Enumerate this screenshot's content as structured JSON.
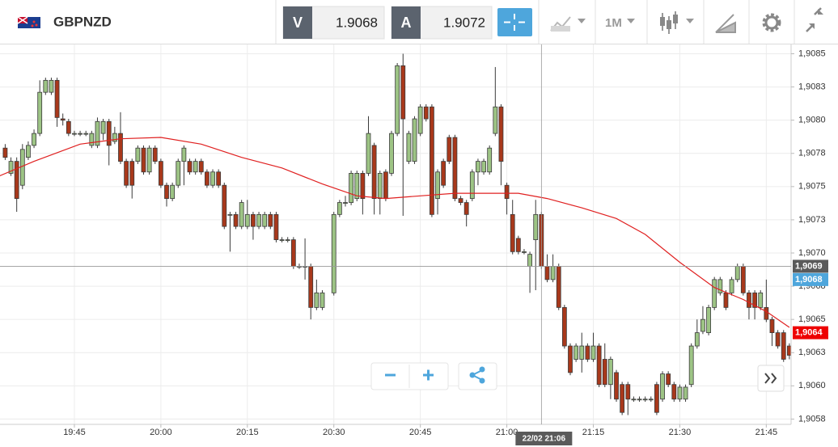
{
  "toolbar": {
    "symbol": "GBPNZD",
    "bid": {
      "letter": "V",
      "price": "1.9068"
    },
    "ask": {
      "letter": "A",
      "price": "1.9072"
    },
    "period": "1M"
  },
  "chart_data": {
    "type": "candlestick",
    "x": [
      1173,
      1174,
      1175,
      1176,
      1177,
      1178,
      1179,
      1180,
      1181,
      1182,
      1183,
      1184,
      1185,
      1186,
      1187,
      1188,
      1189,
      1190,
      1191,
      1192,
      1193,
      1194,
      1195,
      1196,
      1197,
      1198,
      1199,
      1200,
      1201,
      1202,
      1203,
      1204,
      1205,
      1206,
      1207,
      1208,
      1209,
      1210,
      1211,
      1212,
      1213,
      1214,
      1215,
      1216,
      1217,
      1218,
      1219,
      1220,
      1221,
      1222,
      1223,
      1224,
      1225,
      1226,
      1227,
      1228,
      1230,
      1231,
      1232,
      1233,
      1234,
      1235,
      1236,
      1237,
      1238,
      1239,
      1240,
      1241,
      1242,
      1243,
      1244,
      1245,
      1246,
      1247,
      1248,
      1249,
      1250,
      1251,
      1252,
      1253,
      1254,
      1255,
      1256,
      1257,
      1258,
      1259,
      1260,
      1261,
      1262,
      1263,
      1264,
      1265,
      1266,
      1267,
      1268,
      1269,
      1270,
      1271,
      1272,
      1273,
      1274,
      1275,
      1276,
      1277,
      1278,
      1279,
      1280,
      1281,
      1282,
      1283,
      1284,
      1285,
      1286,
      1287,
      1288,
      1289,
      1290,
      1291,
      1292,
      1293,
      1294,
      1295,
      1296,
      1297,
      1298,
      1299,
      1300,
      1301,
      1302,
      1303,
      1304,
      1305,
      1306,
      1307,
      1308,
      1309
    ],
    "open": [
      1.90779,
      1.9076,
      1.90769,
      1.90751,
      1.90772,
      1.90781,
      1.9079,
      1.90821,
      1.90821,
      1.9083,
      1.90801,
      1.90799,
      1.9079,
      1.9079,
      1.9079,
      1.90781,
      1.90781,
      1.9079,
      1.90799,
      1.90784,
      1.9079,
      1.90769,
      1.90769,
      1.90769,
      1.90779,
      1.90761,
      1.90779,
      1.90769,
      1.90751,
      1.90741,
      1.90751,
      1.90769,
      1.90769,
      1.90761,
      1.90769,
      1.90761,
      1.90751,
      1.90761,
      1.90751,
      1.90729,
      1.90729,
      1.9072,
      1.9072,
      1.90729,
      1.9072,
      1.9072,
      1.90729,
      1.90729,
      1.9071,
      1.9071,
      1.9071,
      1.9069,
      1.9069,
      1.9069,
      1.90659,
      1.90659,
      1.9067,
      1.90729,
      1.90738,
      1.90738,
      1.90741,
      1.9076,
      1.9076,
      1.90781,
      1.90741,
      1.90761,
      1.9076,
      1.9079,
      1.90841,
      1.90769,
      1.90769,
      1.9079,
      1.9081,
      1.9081,
      1.90741,
      1.90769,
      1.90787,
      1.90787,
      1.90741,
      1.90738,
      1.90741,
      1.90761,
      1.90761,
      1.90761,
      1.9079,
      1.9081,
      1.90751,
      1.90729,
      1.90711,
      1.90701,
      1.9069,
      1.9071,
      1.90729,
      1.9069,
      1.9068,
      1.9069,
      1.90659,
      1.9063,
      1.9062,
      1.9062,
      1.9063,
      1.9062,
      1.9063,
      1.9062,
      1.90601,
      1.9061,
      1.90601,
      1.90601,
      1.9059,
      1.9059,
      1.9059,
      1.9059,
      1.90601,
      1.9059,
      1.90609,
      1.90601,
      1.9059,
      1.9059,
      1.90601,
      1.9063,
      1.90641,
      1.9064,
      1.90659,
      1.9067,
      1.9067,
      1.9067,
      1.9068,
      1.9069,
      1.9067,
      1.9067,
      1.90659,
      1.90659,
      1.9065,
      1.9064,
      1.9064,
      1.9063
    ],
    "high": [
      1.90782,
      1.90772,
      1.90772,
      1.90782,
      1.90784,
      1.90793,
      1.9083,
      1.90832,
      1.90832,
      1.90832,
      1.90805,
      1.90801,
      1.90792,
      1.90792,
      1.90792,
      1.90792,
      1.90802,
      1.90801,
      1.90801,
      1.90795,
      1.90806,
      1.90771,
      1.90771,
      1.90781,
      1.90781,
      1.90781,
      1.90781,
      1.90771,
      1.90753,
      1.90753,
      1.90771,
      1.90781,
      1.90771,
      1.90771,
      1.90771,
      1.90763,
      1.90763,
      1.90763,
      1.90753,
      1.90731,
      1.90731,
      1.9074,
      1.9074,
      1.90731,
      1.90731,
      1.90731,
      1.90731,
      1.90731,
      1.90712,
      1.90712,
      1.90712,
      1.90692,
      1.90711,
      1.90692,
      1.9068,
      1.90672,
      1.90731,
      1.9074,
      1.90743,
      1.90762,
      1.90762,
      1.90762,
      1.90803,
      1.90783,
      1.90762,
      1.90763,
      1.90792,
      1.90843,
      1.9085,
      1.90792,
      1.90803,
      1.90812,
      1.90812,
      1.90812,
      1.90763,
      1.90771,
      1.90789,
      1.90789,
      1.90743,
      1.9074,
      1.90763,
      1.90771,
      1.90771,
      1.90781,
      1.9084,
      1.90812,
      1.90753,
      1.9074,
      1.90713,
      1.90703,
      1.90701,
      1.9074,
      1.90731,
      1.90699,
      1.90699,
      1.90692,
      1.90661,
      1.90632,
      1.90632,
      1.9064,
      1.90632,
      1.9064,
      1.90632,
      1.90632,
      1.90622,
      1.90612,
      1.90603,
      1.90603,
      1.90592,
      1.90592,
      1.90592,
      1.90592,
      1.90603,
      1.90611,
      1.90611,
      1.90603,
      1.90601,
      1.90601,
      1.90632,
      1.9065,
      1.9066,
      1.90661,
      1.90682,
      1.90682,
      1.90672,
      1.90682,
      1.90692,
      1.90692,
      1.90672,
      1.90672,
      1.90672,
      1.9068,
      1.90652,
      1.90642,
      1.90642,
      1.90632
    ],
    "low": [
      1.9077,
      1.90758,
      1.90731,
      1.90748,
      1.9077,
      1.90779,
      1.90788,
      1.90819,
      1.90819,
      1.90795,
      1.90796,
      1.90788,
      1.90788,
      1.90788,
      1.90788,
      1.90779,
      1.90779,
      1.90785,
      1.90766,
      1.90782,
      1.90767,
      1.90749,
      1.90741,
      1.90767,
      1.90759,
      1.90759,
      1.90767,
      1.90749,
      1.90735,
      1.90739,
      1.90749,
      1.90751,
      1.90759,
      1.90759,
      1.90759,
      1.90749,
      1.90749,
      1.90749,
      1.90718,
      1.90701,
      1.90718,
      1.90718,
      1.90718,
      1.9071,
      1.90718,
      1.90718,
      1.90718,
      1.90708,
      1.90708,
      1.90708,
      1.90688,
      1.90688,
      1.9068,
      1.9065,
      1.90657,
      1.90657,
      1.90668,
      1.90727,
      1.90735,
      1.90736,
      1.90739,
      1.90729,
      1.90758,
      1.90729,
      1.90729,
      1.90739,
      1.90758,
      1.90788,
      1.90728,
      1.90767,
      1.90767,
      1.90788,
      1.90799,
      1.90727,
      1.90729,
      1.90749,
      1.90767,
      1.90739,
      1.90736,
      1.9072,
      1.90739,
      1.90751,
      1.90759,
      1.90759,
      1.90788,
      1.90751,
      1.90729,
      1.90699,
      1.90699,
      1.90699,
      1.9067,
      1.90672,
      1.90688,
      1.90678,
      1.90678,
      1.90657,
      1.90628,
      1.90608,
      1.90618,
      1.9061,
      1.90618,
      1.90618,
      1.90599,
      1.90599,
      1.9059,
      1.90588,
      1.90578,
      1.90578,
      1.90588,
      1.90588,
      1.90588,
      1.90588,
      1.90578,
      1.90588,
      1.90599,
      1.90588,
      1.90588,
      1.90588,
      1.90599,
      1.90628,
      1.90639,
      1.90638,
      1.90657,
      1.90668,
      1.90657,
      1.90668,
      1.90678,
      1.90668,
      1.9065,
      1.9065,
      1.90657,
      1.90648,
      1.9063,
      1.90628,
      1.90618,
      1.9062
    ],
    "close": [
      1.90772,
      1.90769,
      1.90741,
      1.90778,
      1.90781,
      1.9079,
      1.90821,
      1.9083,
      1.9083,
      1.90802,
      1.908,
      1.9079,
      1.9079,
      1.9079,
      1.9079,
      1.9079,
      1.90799,
      1.90799,
      1.90781,
      1.9079,
      1.90769,
      1.90751,
      1.90751,
      1.90779,
      1.90761,
      1.90779,
      1.90769,
      1.90751,
      1.90741,
      1.90751,
      1.90769,
      1.90779,
      1.90761,
      1.90769,
      1.90761,
      1.90751,
      1.90761,
      1.90751,
      1.9072,
      1.90729,
      1.9072,
      1.90738,
      1.90729,
      1.9072,
      1.90729,
      1.90729,
      1.9072,
      1.9071,
      1.9071,
      1.9071,
      1.9069,
      1.9069,
      1.9069,
      1.90659,
      1.9067,
      1.9067,
      1.90729,
      1.90738,
      1.90738,
      1.9076,
      1.9076,
      1.90741,
      1.9079,
      1.90741,
      1.9076,
      1.90741,
      1.9079,
      1.90841,
      1.90801,
      1.9079,
      1.90801,
      1.9081,
      1.90801,
      1.90729,
      1.90761,
      1.90751,
      1.90769,
      1.90741,
      1.90738,
      1.90729,
      1.90761,
      1.90769,
      1.90769,
      1.90779,
      1.9081,
      1.90769,
      1.90741,
      1.90701,
      1.90701,
      1.90701,
      1.90699,
      1.90729,
      1.9069,
      1.9068,
      1.9069,
      1.90659,
      1.9063,
      1.9061,
      1.9063,
      1.9063,
      1.9062,
      1.9063,
      1.90601,
      1.90601,
      1.9062,
      1.9059,
      1.9058,
      1.9059,
      1.9059,
      1.9059,
      1.9059,
      1.9059,
      1.9058,
      1.90609,
      1.90601,
      1.9059,
      1.90599,
      1.90599,
      1.9063,
      1.9064,
      1.9065,
      1.90659,
      1.9068,
      1.9068,
      1.90659,
      1.9068,
      1.9069,
      1.9067,
      1.90659,
      1.90659,
      1.9067,
      1.9065,
      1.9064,
      1.9063,
      1.9062,
      1.90623
    ],
    "up_color": "#9dc485",
    "down_color": "#a8381b",
    "outline": "#3a3a3a",
    "moving_average": {
      "color": "#e02020",
      "x": [
        1172,
        1178,
        1186,
        1193,
        1200,
        1207,
        1214,
        1221,
        1228,
        1234,
        1239,
        1245,
        1251,
        1256,
        1262,
        1267,
        1273,
        1279,
        1284,
        1290,
        1296,
        1301,
        1305,
        1309
      ],
      "values": [
        1.90758,
        1.90769,
        1.90782,
        1.90786,
        1.90787,
        1.90782,
        1.90772,
        1.90764,
        1.90752,
        1.90743,
        1.90741,
        1.90743,
        1.90745,
        1.90745,
        1.90745,
        1.90741,
        1.90734,
        1.90726,
        1.90714,
        1.90693,
        1.90674,
        1.90665,
        1.90656,
        1.90644
      ]
    },
    "xlim": [
      1172.1,
      1309.3
    ],
    "xticks": [
      {
        "value": 1185,
        "label": "19:45"
      },
      {
        "value": 1200,
        "label": "20:00"
      },
      {
        "value": 1215,
        "label": "20:15"
      },
      {
        "value": 1230,
        "label": "20:30"
      },
      {
        "value": 1245,
        "label": "20:45"
      },
      {
        "value": 1260,
        "label": "21:00"
      },
      {
        "value": 1275,
        "label": "21:15"
      },
      {
        "value": 1290,
        "label": "21:30"
      },
      {
        "value": 1305,
        "label": "21:45"
      }
    ],
    "ylim": [
      1.90571,
      1.90857
    ],
    "yticks": [
      {
        "value": 1.9085,
        "label": "1,9085"
      },
      {
        "value": 1.90825,
        "label": "1,9083"
      },
      {
        "value": 1.908,
        "label": "1,9080"
      },
      {
        "value": 1.90775,
        "label": "1,9078"
      },
      {
        "value": 1.9075,
        "label": "1,9075"
      },
      {
        "value": 1.90725,
        "label": "1,9073"
      },
      {
        "value": 1.907,
        "label": "1,9070"
      },
      {
        "value": 1.90675,
        "label": "1,9068"
      },
      {
        "value": 1.9065,
        "label": "1,9065"
      },
      {
        "value": 1.90625,
        "label": "1,9063"
      },
      {
        "value": 1.906,
        "label": "1,9060"
      },
      {
        "value": 1.90575,
        "label": "1,9058"
      }
    ],
    "grid": true,
    "crosshair": {
      "x": {
        "value": 1266,
        "label": "22/02 21:06"
      },
      "y": {
        "value": 1.9069,
        "label": "1,9069"
      },
      "color": "#5a5a5a"
    },
    "price_labels": [
      {
        "value": 1.9068,
        "label": "1,9068",
        "color": "#4ea6dc"
      },
      {
        "value": 1.9064,
        "label": "1,9064",
        "color": "#ee0000"
      }
    ]
  }
}
